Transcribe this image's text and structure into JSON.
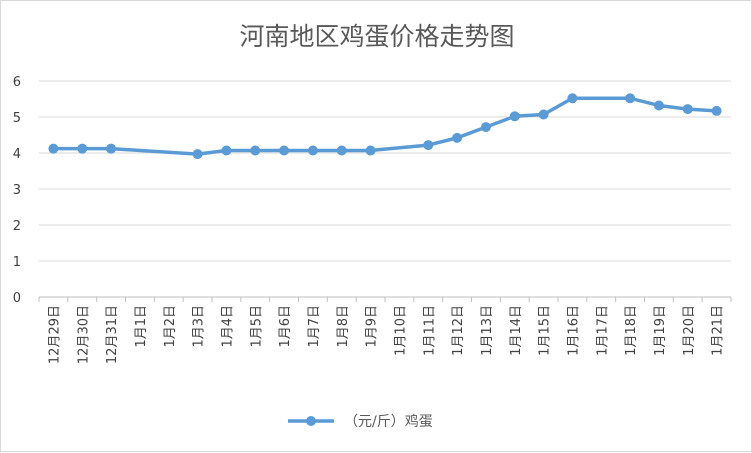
{
  "chart_data": {
    "type": "line",
    "title": "河南地区鸡蛋价格走势图",
    "categories": [
      "12月29日",
      "12月30日",
      "12月31日",
      "1月1日",
      "1月2日",
      "1月3日",
      "1月4日",
      "1月5日",
      "1月6日",
      "1月7日",
      "1月8日",
      "1月9日",
      "1月10日",
      "1月11日",
      "1月12日",
      "1月13日",
      "1月14日",
      "1月15日",
      "1月16日",
      "1月17日",
      "1月18日",
      "1月19日",
      "1月20日",
      "1月21日"
    ],
    "series": [
      {
        "name": "（元/斤）鸡蛋",
        "color": "#5b9bd5",
        "values": [
          4.12,
          4.12,
          4.12,
          null,
          null,
          3.97,
          4.07,
          4.07,
          4.07,
          4.07,
          4.07,
          4.07,
          null,
          4.22,
          4.42,
          4.72,
          5.02,
          5.07,
          5.52,
          null,
          5.52,
          5.32,
          5.22,
          5.17
        ]
      }
    ],
    "yticks": [
      "0",
      "1",
      "2",
      "3",
      "4",
      "5",
      "6"
    ],
    "ylim": [
      0,
      6
    ],
    "grid": true,
    "legend_position": "bottom"
  }
}
